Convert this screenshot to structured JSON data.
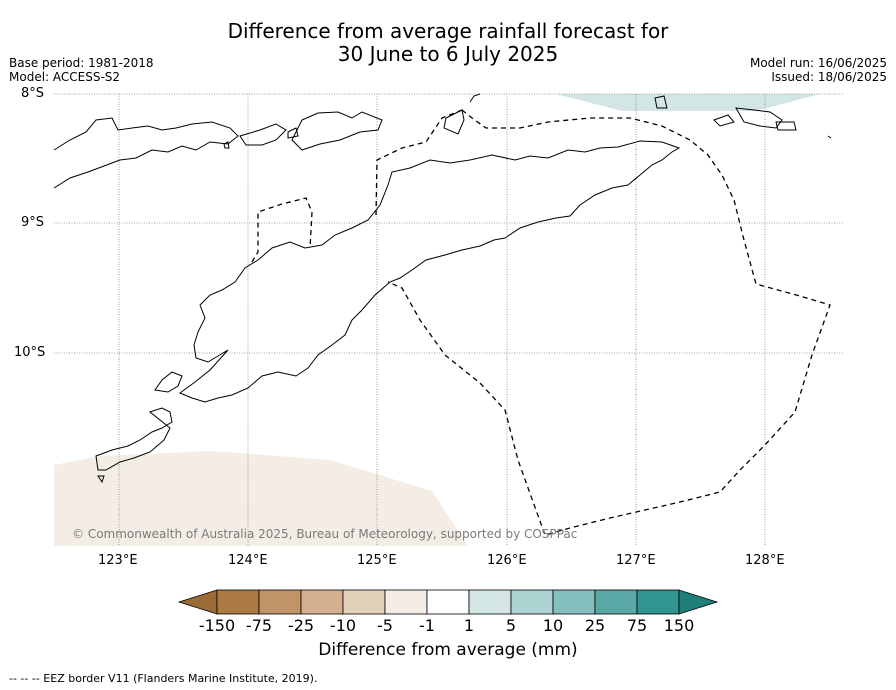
{
  "title_line1": "Difference from average rainfall forecast for",
  "title_line2": "30 June to 6 July 2025",
  "meta": {
    "base_period": "Base period: 1981-2018",
    "model": "Model: ACCESS-S2",
    "model_run": "Model run: 16/06/2025",
    "issued": "Issued: 18/06/2025"
  },
  "map": {
    "lat_labels": [
      "8°S",
      "9°S",
      "10°S"
    ],
    "lon_labels": [
      "123°E",
      "124°E",
      "125°E",
      "126°E",
      "127°E",
      "128°E"
    ],
    "copyright": "© Commonwealth of Australia 2025, Bureau of Meteorology, supported by COSPPac"
  },
  "colorbar": {
    "ticks": [
      "-150",
      "-75",
      "-25",
      "-10",
      "-5",
      "-1",
      "1",
      "5",
      "10",
      "25",
      "75",
      "150"
    ],
    "colors": [
      "#9b6b35",
      "#ad7a44",
      "#c19468",
      "#d4b08e",
      "#e2d0bb",
      "#f3ede6",
      "#ffffff",
      "#d3e6e4",
      "#add4d2",
      "#82bfbd",
      "#5aa8a6",
      "#31958f",
      "#1f7f79"
    ],
    "label": "Difference from average (mm)"
  },
  "footnote": "--  --  -- EEZ border V11 (Flanders Marine Institute, 2019)."
}
